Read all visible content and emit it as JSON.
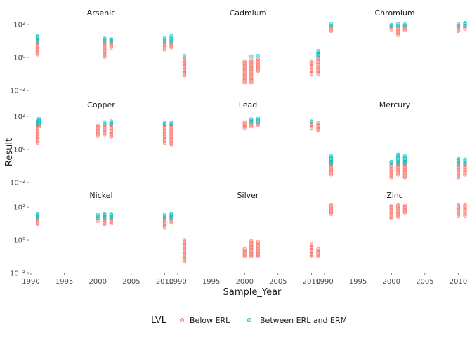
{
  "chart_data": {
    "type": "scatter",
    "facet_by": "analyte",
    "xlabel": "Sample_Year",
    "ylabel": "Result",
    "y_scale": "log10",
    "xlim": [
      1990,
      2011
    ],
    "ylim": [
      0.01,
      200
    ],
    "x_ticks": [
      "1990",
      "1995",
      "2000",
      "2005",
      "2010"
    ],
    "y_ticks": [
      {
        "value": 0.01,
        "label": "10⁻²"
      },
      {
        "value": 1,
        "label": "10⁰"
      },
      {
        "value": 100,
        "label": "10²"
      }
    ],
    "legend": {
      "title": "LVL",
      "position": "bottom",
      "entries": [
        {
          "name": "Below ERL",
          "color": "#F8766D"
        },
        {
          "name": "Between ERL and ERM",
          "color": "#00BFC4"
        }
      ]
    },
    "grid": false,
    "panels": [
      {
        "name": "Arsenic",
        "points": [
          {
            "x": 1991,
            "lvl": "Below ERL",
            "lo": 1.5,
            "hi": 9
          },
          {
            "x": 1991,
            "lvl": "Between ERL and ERM",
            "lo": 10,
            "hi": 22
          },
          {
            "x": 2001,
            "lvl": "Below ERL",
            "lo": 1.1,
            "hi": 9
          },
          {
            "x": 2001,
            "lvl": "Between ERL and ERM",
            "lo": 10,
            "hi": 16
          },
          {
            "x": 2002,
            "lvl": "Below ERL",
            "lo": 4,
            "hi": 9
          },
          {
            "x": 2002,
            "lvl": "Between ERL and ERM",
            "lo": 10,
            "hi": 14
          },
          {
            "x": 2010,
            "lvl": "Below ERL",
            "lo": 3,
            "hi": 9
          },
          {
            "x": 2010,
            "lvl": "Between ERL and ERM",
            "lo": 10,
            "hi": 16
          },
          {
            "x": 2011,
            "lvl": "Below ERL",
            "lo": 4,
            "hi": 9
          },
          {
            "x": 2011,
            "lvl": "Between ERL and ERM",
            "lo": 10,
            "hi": 20
          }
        ]
      },
      {
        "name": "Cadmium",
        "points": [
          {
            "x": 1991,
            "lvl": "Below ERL",
            "lo": 0.08,
            "hi": 0.9
          },
          {
            "x": 1991,
            "lvl": "Between ERL and ERM",
            "lo": 1.3,
            "hi": 1.3
          },
          {
            "x": 2000,
            "lvl": "Below ERL",
            "lo": 0.03,
            "hi": 0.6
          },
          {
            "x": 2001,
            "lvl": "Below ERL",
            "lo": 0.03,
            "hi": 0.7
          },
          {
            "x": 2001,
            "lvl": "Between ERL and ERM",
            "lo": 1.2,
            "hi": 1.2
          },
          {
            "x": 2002,
            "lvl": "Below ERL",
            "lo": 0.15,
            "hi": 0.8
          },
          {
            "x": 2002,
            "lvl": "Between ERL and ERM",
            "lo": 1.3,
            "hi": 1.3
          },
          {
            "x": 2010,
            "lvl": "Below ERL",
            "lo": 0.1,
            "hi": 0.6
          },
          {
            "x": 2011,
            "lvl": "Below ERL",
            "lo": 0.1,
            "hi": 1.0
          },
          {
            "x": 2011,
            "lvl": "Between ERL and ERM",
            "lo": 1.2,
            "hi": 2.5
          }
        ]
      },
      {
        "name": "Chromium",
        "points": [
          {
            "x": 1991,
            "lvl": "Below ERL",
            "lo": 40,
            "hi": 80
          },
          {
            "x": 1991,
            "lvl": "Between ERL and ERM",
            "lo": 85,
            "hi": 110
          },
          {
            "x": 2000,
            "lvl": "Below ERL",
            "lo": 50,
            "hi": 80
          },
          {
            "x": 2000,
            "lvl": "Between ERL and ERM",
            "lo": 85,
            "hi": 95
          },
          {
            "x": 2001,
            "lvl": "Below ERL",
            "lo": 25,
            "hi": 80
          },
          {
            "x": 2001,
            "lvl": "Between ERL and ERM",
            "lo": 85,
            "hi": 110
          },
          {
            "x": 2002,
            "lvl": "Below ERL",
            "lo": 45,
            "hi": 80
          },
          {
            "x": 2002,
            "lvl": "Between ERL and ERM",
            "lo": 85,
            "hi": 105
          },
          {
            "x": 2010,
            "lvl": "Below ERL",
            "lo": 40,
            "hi": 80
          },
          {
            "x": 2010,
            "lvl": "Between ERL and ERM",
            "lo": 85,
            "hi": 110
          },
          {
            "x": 2011,
            "lvl": "Below ERL",
            "lo": 55,
            "hi": 80
          },
          {
            "x": 2011,
            "lvl": "Between ERL and ERM",
            "lo": 85,
            "hi": 130
          }
        ]
      },
      {
        "name": "Copper",
        "points": [
          {
            "x": 1991,
            "lvl": "Below ERL",
            "lo": 2.5,
            "hi": 30
          },
          {
            "x": 1991,
            "lvl": "Between ERL and ERM",
            "lo": 35,
            "hi": 55
          },
          {
            "x": 2000,
            "lvl": "Below ERL",
            "lo": 7,
            "hi": 30
          },
          {
            "x": 2001,
            "lvl": "Below ERL",
            "lo": 8,
            "hi": 30
          },
          {
            "x": 2001,
            "lvl": "Between ERL and ERM",
            "lo": 35,
            "hi": 45
          },
          {
            "x": 2002,
            "lvl": "Below ERL",
            "lo": 6,
            "hi": 30
          },
          {
            "x": 2002,
            "lvl": "Between ERL and ERM",
            "lo": 35,
            "hi": 50
          },
          {
            "x": 2010,
            "lvl": "Below ERL",
            "lo": 2.5,
            "hi": 30
          },
          {
            "x": 2010,
            "lvl": "Between ERL and ERM",
            "lo": 35,
            "hi": 40
          },
          {
            "x": 2011,
            "lvl": "Below ERL",
            "lo": 2,
            "hi": 30
          },
          {
            "x": 2011,
            "lvl": "Between ERL and ERM",
            "lo": 35,
            "hi": 40
          },
          {
            "x": 1991.2,
            "lvl": "Below ERL",
            "lo": 25,
            "hi": 30
          },
          {
            "x": 1991.2,
            "lvl": "Between ERL and ERM",
            "lo": 35,
            "hi": 75
          }
        ]
      },
      {
        "name": "Lead",
        "points": [
          {
            "x": 2000,
            "lvl": "Below ERL",
            "lo": 20,
            "hi": 45
          },
          {
            "x": 2001,
            "lvl": "Below ERL",
            "lo": 25,
            "hi": 45
          },
          {
            "x": 2001,
            "lvl": "Between ERL and ERM",
            "lo": 50,
            "hi": 70
          },
          {
            "x": 2002,
            "lvl": "Below ERL",
            "lo": 30,
            "hi": 45
          },
          {
            "x": 2002,
            "lvl": "Between ERL and ERM",
            "lo": 50,
            "hi": 80
          },
          {
            "x": 2010,
            "lvl": "Below ERL",
            "lo": 20,
            "hi": 45
          },
          {
            "x": 2010,
            "lvl": "Between ERL and ERM",
            "lo": 50,
            "hi": 55
          },
          {
            "x": 2011,
            "lvl": "Below ERL",
            "lo": 15,
            "hi": 40
          }
        ]
      },
      {
        "name": "Mercury",
        "points": [
          {
            "x": 1991,
            "lvl": "Below ERL",
            "lo": 0.03,
            "hi": 0.14
          },
          {
            "x": 1991,
            "lvl": "Between ERL and ERM",
            "lo": 0.15,
            "hi": 0.4
          },
          {
            "x": 2000,
            "lvl": "Below ERL",
            "lo": 0.02,
            "hi": 0.12
          },
          {
            "x": 2000,
            "lvl": "Between ERL and ERM",
            "lo": 0.15,
            "hi": 0.18
          },
          {
            "x": 2001,
            "lvl": "Below ERL",
            "lo": 0.03,
            "hi": 0.14
          },
          {
            "x": 2001,
            "lvl": "Between ERL and ERM",
            "lo": 0.15,
            "hi": 0.5
          },
          {
            "x": 2002,
            "lvl": "Below ERL",
            "lo": 0.02,
            "hi": 0.14
          },
          {
            "x": 2002,
            "lvl": "Between ERL and ERM",
            "lo": 0.15,
            "hi": 0.4
          },
          {
            "x": 2010,
            "lvl": "Below ERL",
            "lo": 0.02,
            "hi": 0.14
          },
          {
            "x": 2010,
            "lvl": "Between ERL and ERM",
            "lo": 0.15,
            "hi": 0.3
          },
          {
            "x": 2011,
            "lvl": "Below ERL",
            "lo": 0.03,
            "hi": 0.14
          },
          {
            "x": 2011,
            "lvl": "Between ERL and ERM",
            "lo": 0.15,
            "hi": 0.25
          }
        ]
      },
      {
        "name": "Nickel",
        "points": [
          {
            "x": 1991,
            "lvl": "Below ERL",
            "lo": 9,
            "hi": 20
          },
          {
            "x": 1991,
            "lvl": "Between ERL and ERM",
            "lo": 22,
            "hi": 40
          },
          {
            "x": 2000,
            "lvl": "Below ERL",
            "lo": 15,
            "hi": 20
          },
          {
            "x": 2000,
            "lvl": "Between ERL and ERM",
            "lo": 22,
            "hi": 35
          },
          {
            "x": 2001,
            "lvl": "Below ERL",
            "lo": 9,
            "hi": 20
          },
          {
            "x": 2001,
            "lvl": "Between ERL and ERM",
            "lo": 22,
            "hi": 40
          },
          {
            "x": 2002,
            "lvl": "Below ERL",
            "lo": 10,
            "hi": 20
          },
          {
            "x": 2002,
            "lvl": "Between ERL and ERM",
            "lo": 22,
            "hi": 38
          },
          {
            "x": 2010,
            "lvl": "Below ERL",
            "lo": 6,
            "hi": 20
          },
          {
            "x": 2010,
            "lvl": "Between ERL and ERM",
            "lo": 22,
            "hi": 35
          },
          {
            "x": 2011,
            "lvl": "Below ERL",
            "lo": 12,
            "hi": 20
          },
          {
            "x": 2011,
            "lvl": "Between ERL and ERM",
            "lo": 22,
            "hi": 40
          }
        ]
      },
      {
        "name": "Silver",
        "points": [
          {
            "x": 1991,
            "lvl": "Below ERL",
            "lo": 0.05,
            "hi": 1.0
          },
          {
            "x": 2000,
            "lvl": "Below ERL",
            "lo": 0.1,
            "hi": 0.3
          },
          {
            "x": 2001,
            "lvl": "Below ERL",
            "lo": 0.1,
            "hi": 0.9
          },
          {
            "x": 2002,
            "lvl": "Below ERL",
            "lo": 0.1,
            "hi": 0.8
          },
          {
            "x": 2010,
            "lvl": "Below ERL",
            "lo": 0.1,
            "hi": 0.6
          },
          {
            "x": 2011,
            "lvl": "Below ERL",
            "lo": 0.1,
            "hi": 0.3
          }
        ]
      },
      {
        "name": "Zinc",
        "points": [
          {
            "x": 1991,
            "lvl": "Below ERL",
            "lo": 40,
            "hi": 140
          },
          {
            "x": 2000,
            "lvl": "Below ERL",
            "lo": 20,
            "hi": 130
          },
          {
            "x": 2001,
            "lvl": "Below ERL",
            "lo": 25,
            "hi": 140
          },
          {
            "x": 2002,
            "lvl": "Below ERL",
            "lo": 45,
            "hi": 130
          },
          {
            "x": 2010,
            "lvl": "Below ERL",
            "lo": 30,
            "hi": 140
          },
          {
            "x": 2011,
            "lvl": "Below ERL",
            "lo": 30,
            "hi": 140
          }
        ]
      }
    ]
  }
}
